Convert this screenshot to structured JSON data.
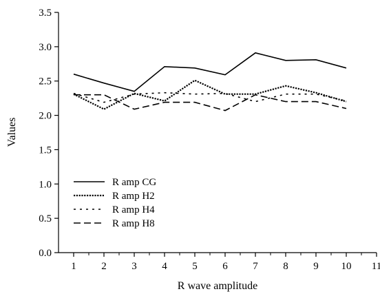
{
  "chart_data": {
    "type": "line",
    "title": "",
    "xlabel": "R wave amplitude",
    "ylabel": "Values",
    "xlim": [
      0.5,
      11
    ],
    "ylim": [
      0,
      3.5
    ],
    "xticks": [
      "1",
      "2",
      "3",
      "4",
      "5",
      "6",
      "7",
      "8",
      "9",
      "10",
      "11"
    ],
    "yticks": [
      "0.0",
      "0.5",
      "1.0",
      "1.5",
      "2.0",
      "2.5",
      "3.0",
      "3.5"
    ],
    "grid": false,
    "legend_position": "bottom-left",
    "x": [
      1,
      2,
      3,
      4,
      5,
      6,
      7,
      8,
      9,
      10
    ],
    "series": [
      {
        "name": "R amp CG",
        "dash": "solid",
        "values": [
          2.6,
          2.47,
          2.35,
          2.71,
          2.69,
          2.59,
          2.91,
          2.8,
          2.81,
          2.69
        ]
      },
      {
        "name": "R amp H2",
        "dash": "dotted",
        "values": [
          2.31,
          2.09,
          2.32,
          2.21,
          2.51,
          2.31,
          2.31,
          2.43,
          2.33,
          2.2
        ]
      },
      {
        "name": "R amp H4",
        "dash": "short-dash",
        "values": [
          2.32,
          2.19,
          2.31,
          2.33,
          2.31,
          2.32,
          2.2,
          2.31,
          2.31,
          2.21
        ]
      },
      {
        "name": "R amp H8",
        "dash": "long-dash",
        "values": [
          2.3,
          2.3,
          2.09,
          2.19,
          2.19,
          2.07,
          2.3,
          2.2,
          2.2,
          2.1
        ]
      }
    ]
  }
}
